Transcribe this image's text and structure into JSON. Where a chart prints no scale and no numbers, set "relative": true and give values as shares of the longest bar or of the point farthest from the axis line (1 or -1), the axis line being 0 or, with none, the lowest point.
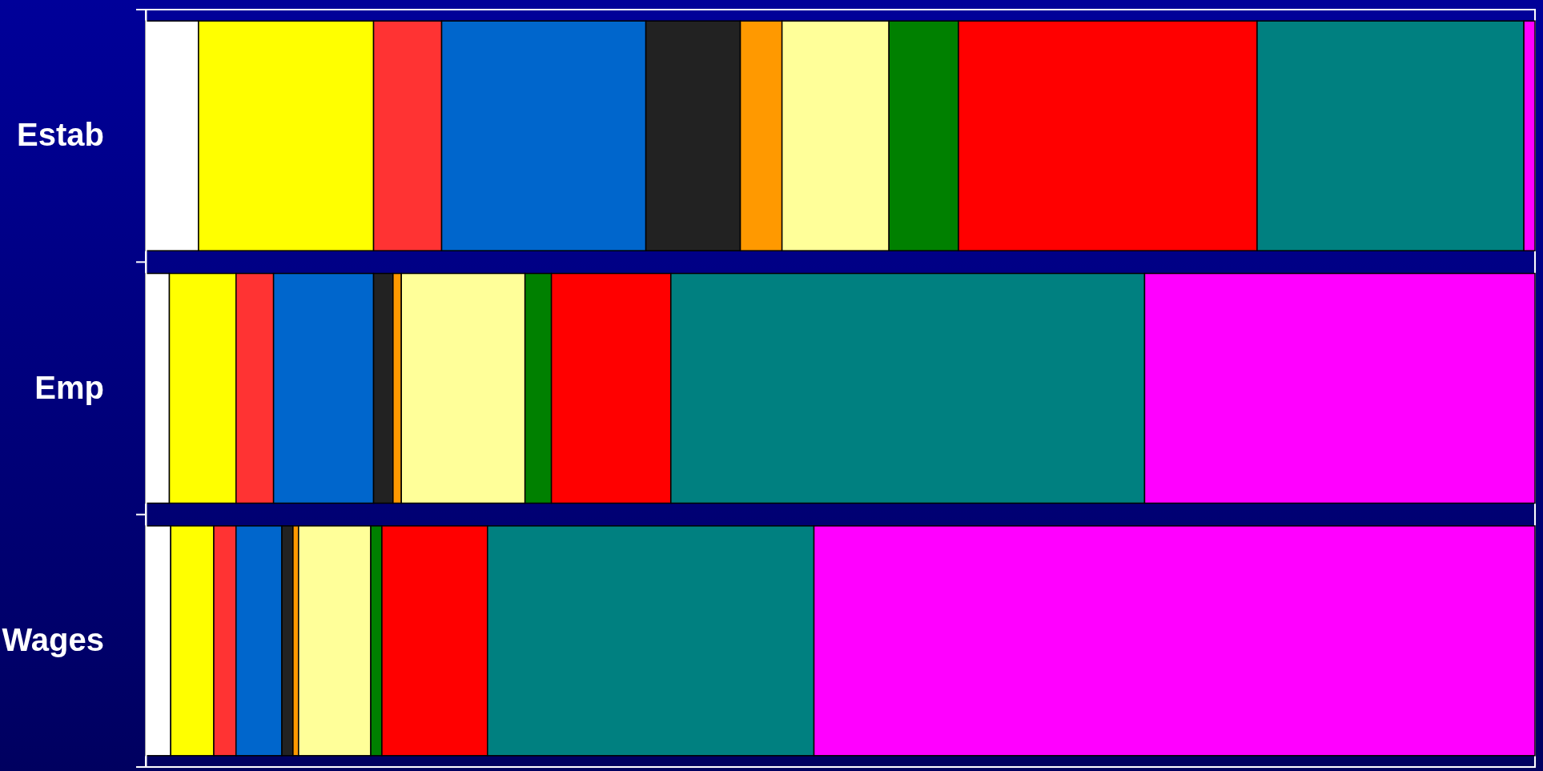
{
  "chart_data": {
    "type": "bar",
    "orientation": "horizontal",
    "stacked": true,
    "relative": true,
    "categories": [
      "Estab",
      "Emp",
      "Wages"
    ],
    "series": [
      {
        "color": "#ffffff",
        "values": [
          0.038,
          0.017,
          0.018
        ]
      },
      {
        "color": "#ffff00",
        "values": [
          0.126,
          0.048,
          0.031
        ]
      },
      {
        "color": "#ff3333",
        "values": [
          0.049,
          0.027,
          0.016
        ]
      },
      {
        "color": "#0066cc",
        "values": [
          0.147,
          0.072,
          0.033
        ]
      },
      {
        "color": "#222222",
        "values": [
          0.068,
          0.014,
          0.008
        ]
      },
      {
        "color": "#ff9900",
        "values": [
          0.03,
          0.006,
          0.004
        ]
      },
      {
        "color": "#ffff99",
        "values": [
          0.077,
          0.089,
          0.052
        ]
      },
      {
        "color": "#008000",
        "values": [
          0.05,
          0.019,
          0.008
        ]
      },
      {
        "color": "#ff0000",
        "values": [
          0.215,
          0.086,
          0.076
        ]
      },
      {
        "color": "#008080",
        "values": [
          0.192,
          0.341,
          0.235
        ]
      },
      {
        "color": "#ff00ff",
        "values": [
          0.008,
          0.281,
          0.519
        ]
      }
    ]
  }
}
